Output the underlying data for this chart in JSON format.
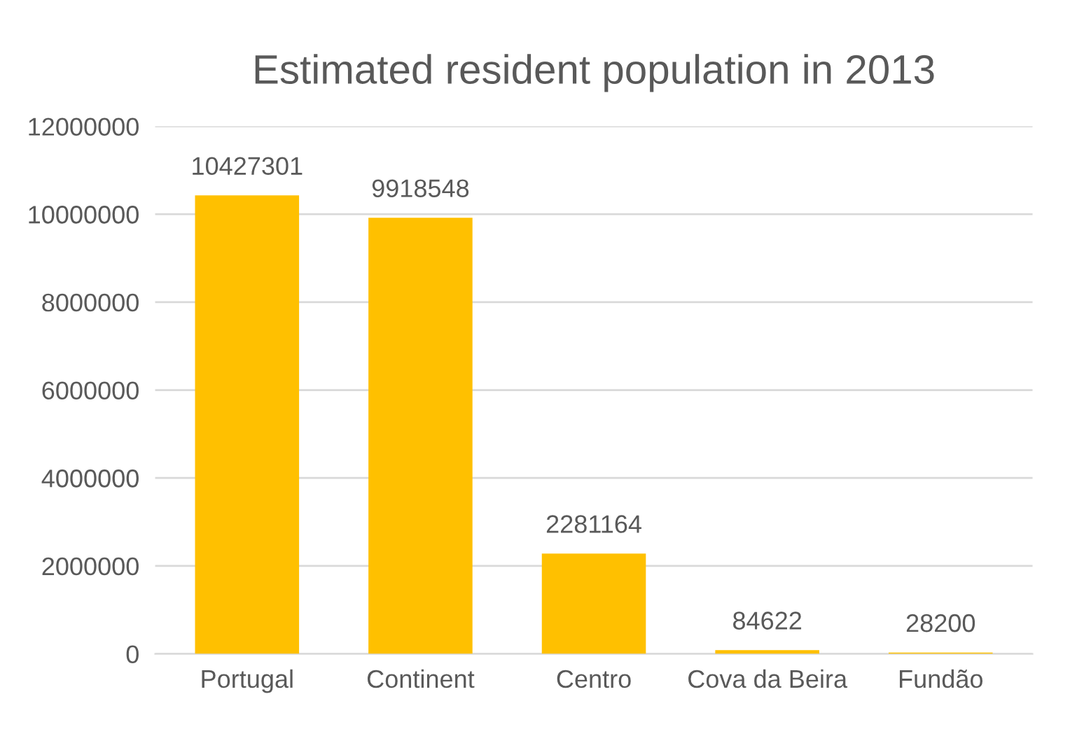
{
  "chart_data": {
    "type": "bar",
    "title": "Estimated resident population in 2013",
    "categories": [
      "Portugal",
      "Continent",
      "Centro",
      "Cova da Beira",
      "Fundão"
    ],
    "values": [
      10427301,
      9918548,
      2281164,
      84622,
      28200
    ],
    "color": "#ffc000",
    "ylim": [
      0,
      12000000
    ],
    "yticks": [
      0,
      2000000,
      4000000,
      6000000,
      8000000,
      10000000,
      12000000
    ],
    "grid": "y",
    "data_labels": true,
    "legend": false
  }
}
